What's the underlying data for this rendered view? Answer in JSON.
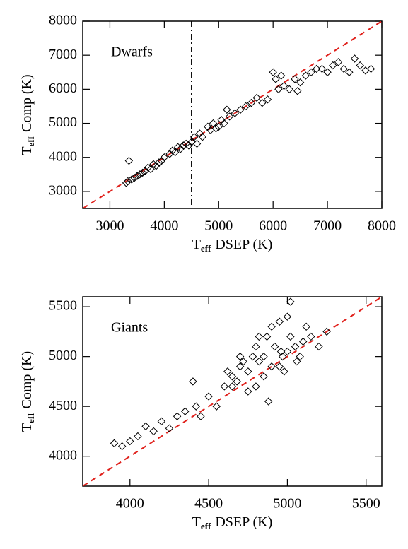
{
  "chart_data": [
    {
      "type": "scatter",
      "annotation": "Dwarfs",
      "xlabel": {
        "symbol": "T",
        "subscript": "eff",
        "text": "DSEP (K)"
      },
      "ylabel": {
        "symbol": "T",
        "subscript": "eff",
        "text": "Comp (K)"
      },
      "xlim": [
        2500,
        8000
      ],
      "ylim": [
        2500,
        8000
      ],
      "xticks": [
        3000,
        4000,
        5000,
        6000,
        7000,
        8000
      ],
      "yticks": [
        3000,
        4000,
        5000,
        6000,
        7000,
        8000
      ],
      "marker_color": "#000000",
      "identity_line": true,
      "identity_color": "#e0201b",
      "vline": 4500,
      "x": [
        3300,
        3350,
        3400,
        3450,
        3500,
        3550,
        3600,
        3650,
        3700,
        3750,
        3800,
        3850,
        3900,
        3950,
        4000,
        4100,
        4150,
        4200,
        4250,
        4300,
        4350,
        4400,
        4450,
        4500,
        4550,
        4600,
        4650,
        4700,
        4800,
        4850,
        4900,
        4950,
        5000,
        5050,
        5100,
        5200,
        5300,
        5400,
        5500,
        5600,
        5700,
        5800,
        5900,
        6000,
        6050,
        6100,
        6200,
        6300,
        6400,
        6500,
        6600,
        6700,
        6800,
        6900,
        7000,
        7100,
        7200,
        7300,
        7400,
        7500,
        7600,
        7700,
        7800,
        3330,
        5150,
        6150,
        6450
      ],
      "values": [
        3250,
        3900,
        3350,
        3400,
        3450,
        3500,
        3550,
        3600,
        3700,
        3650,
        3800,
        3750,
        3850,
        3900,
        4000,
        4100,
        4200,
        4150,
        4300,
        4250,
        4350,
        4400,
        4350,
        4450,
        4600,
        4400,
        4700,
        4600,
        4900,
        4800,
        5000,
        4850,
        4900,
        5100,
        5000,
        5200,
        5300,
        5400,
        5500,
        5600,
        5750,
        5600,
        5700,
        6500,
        6300,
        6000,
        6100,
        6000,
        6300,
        6200,
        6400,
        6500,
        6600,
        6600,
        6500,
        6700,
        6800,
        6600,
        6500,
        6900,
        6700,
        6550,
        6600,
        3300,
        5400,
        6400,
        5950
      ]
    },
    {
      "type": "scatter",
      "annotation": "Giants",
      "xlabel": {
        "symbol": "T",
        "subscript": "eff",
        "text": "DSEP (K)"
      },
      "ylabel": {
        "symbol": "T",
        "subscript": "eff",
        "text": "Comp (K)"
      },
      "xlim": [
        3700,
        5600
      ],
      "ylim": [
        3700,
        5600
      ],
      "xticks": [
        4000,
        4500,
        5000,
        5500
      ],
      "yticks": [
        4000,
        4500,
        5000,
        5500
      ],
      "marker_color": "#000000",
      "identity_line": true,
      "identity_color": "#e0201b",
      "x": [
        3900,
        3950,
        4000,
        4050,
        4100,
        4150,
        4200,
        4250,
        4300,
        4350,
        4400,
        4420,
        4450,
        4500,
        4550,
        4600,
        4620,
        4650,
        4680,
        4700,
        4720,
        4750,
        4780,
        4800,
        4820,
        4850,
        4870,
        4900,
        4920,
        4950,
        4970,
        5000,
        5020,
        5050,
        5080,
        5100,
        5120,
        5150,
        5200,
        5250,
        4800,
        4850,
        4900,
        4950,
        5000,
        4700,
        4750,
        4820,
        4880,
        4960,
        5020,
        4650,
        4980,
        5060
      ],
      "values": [
        4130,
        4100,
        4150,
        4200,
        4300,
        4250,
        4350,
        4280,
        4400,
        4450,
        4750,
        4500,
        4400,
        4600,
        4500,
        4700,
        4850,
        4800,
        4750,
        4900,
        4950,
        4850,
        5000,
        5100,
        4950,
        5000,
        5200,
        4900,
        5100,
        5350,
        5000,
        5050,
        5200,
        5100,
        5000,
        5150,
        5300,
        5200,
        5100,
        5250,
        4700,
        4800,
        5300,
        4900,
        5400,
        5000,
        4650,
        5200,
        4550,
        5050,
        5550,
        4700,
        4850,
        4950
      ]
    }
  ]
}
